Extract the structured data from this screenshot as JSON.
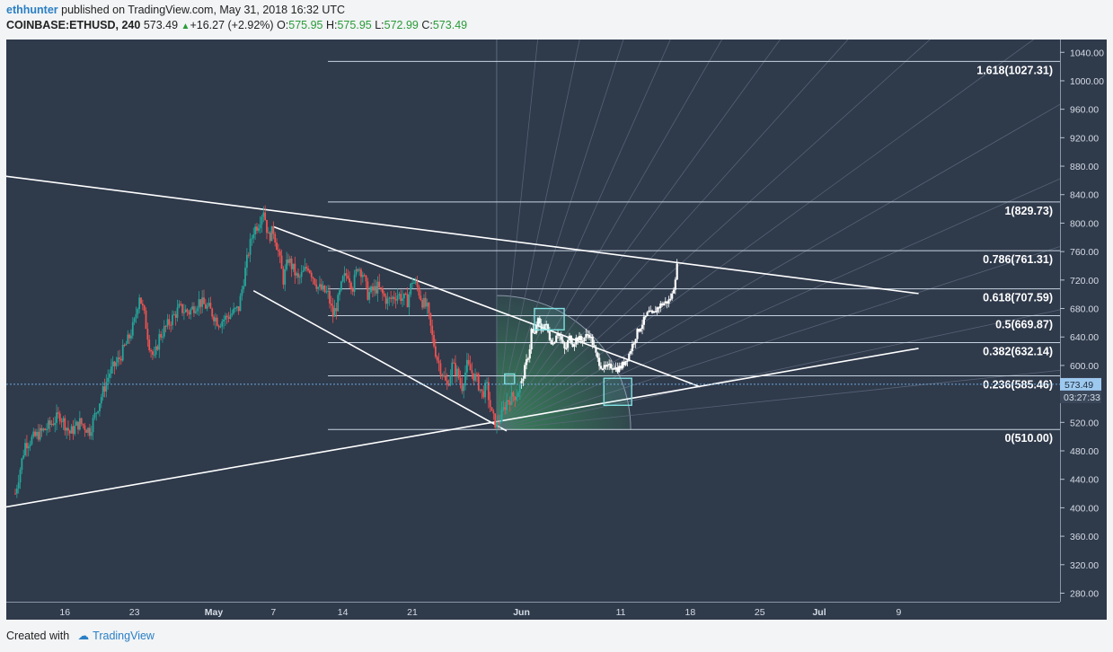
{
  "header": {
    "user": "ethhunter",
    "published_text": "published on TradingView.com, May 31, 2018 16:32 UTC",
    "symbol": "COINBASE:ETHUSD, 240",
    "last": "573.49",
    "change": "+16.27 (+2.92%)",
    "open_label": "O:",
    "open": "575.95",
    "high_label": "H:",
    "high": "575.95",
    "low_label": "L:",
    "low": "572.99",
    "close_label": "C:",
    "close": "573.49"
  },
  "footer": {
    "created_with": "Created with",
    "brand": "TradingView"
  },
  "colors": {
    "background": "#2f3a4b",
    "up": "#26a69a",
    "down": "#ef5350",
    "projection": "#ffffff",
    "fib_line": "#c8d3e0",
    "price_tag": "#9ec9ef",
    "fan_fill": "#3fae63",
    "box": "#7fe0e0"
  },
  "chart_data": {
    "type": "candlestick",
    "y_ticks": [
      "1040.00",
      "1000.00",
      "960.00",
      "920.00",
      "880.00",
      "840.00",
      "800.00",
      "760.00",
      "720.00",
      "680.00",
      "640.00",
      "600.00",
      "560.00",
      "520.00",
      "480.00",
      "440.00",
      "400.00",
      "360.00",
      "320.00",
      "280.00"
    ],
    "ylim": [
      268,
      1058
    ],
    "x_ticks": [
      {
        "label": "16",
        "day": 16
      },
      {
        "label": "23",
        "day": 23
      },
      {
        "label": "May",
        "day": 31
      },
      {
        "label": "7",
        "day": 37
      },
      {
        "label": "14",
        "day": 44
      },
      {
        "label": "21",
        "day": 51
      },
      {
        "label": "Jun",
        "day": 62
      },
      {
        "label": "11",
        "day": 72
      },
      {
        "label": "18",
        "day": 79
      },
      {
        "label": "25",
        "day": 86
      },
      {
        "label": "Jul",
        "day": 92
      },
      {
        "label": "9",
        "day": 100
      }
    ],
    "x_note": "day index counted from Apr 1, 2018",
    "price_path": [
      [
        11.0,
        420
      ],
      [
        12.0,
        490
      ],
      [
        13.0,
        500
      ],
      [
        14.0,
        510
      ],
      [
        15.5,
        530
      ],
      [
        16.5,
        505
      ],
      [
        17.5,
        520
      ],
      [
        18.5,
        508
      ],
      [
        19.5,
        550
      ],
      [
        20.5,
        590
      ],
      [
        21.5,
        610
      ],
      [
        22.5,
        640
      ],
      [
        23.0,
        660
      ],
      [
        23.5,
        700
      ],
      [
        24.0,
        670
      ],
      [
        24.5,
        630
      ],
      [
        25.0,
        608
      ],
      [
        25.5,
        640
      ],
      [
        26.5,
        660
      ],
      [
        27.5,
        680
      ],
      [
        28.5,
        675
      ],
      [
        29.5,
        690
      ],
      [
        30.5,
        680
      ],
      [
        31.5,
        660
      ],
      [
        32.5,
        670
      ],
      [
        33.5,
        680
      ],
      [
        34.0,
        720
      ],
      [
        34.5,
        760
      ],
      [
        35.0,
        790
      ],
      [
        35.5,
        800
      ],
      [
        36.0,
        820
      ],
      [
        36.5,
        780
      ],
      [
        37.0,
        790
      ],
      [
        37.5,
        760
      ],
      [
        38.0,
        720
      ],
      [
        38.5,
        750
      ],
      [
        39.5,
        720
      ],
      [
        40.5,
        740
      ],
      [
        41.5,
        710
      ],
      [
        42.5,
        700
      ],
      [
        43.0,
        670
      ],
      [
        43.5,
        690
      ],
      [
        44.0,
        720
      ],
      [
        44.5,
        730
      ],
      [
        45.0,
        710
      ],
      [
        45.5,
        740
      ],
      [
        46.0,
        730
      ],
      [
        46.5,
        700
      ],
      [
        47.5,
        710
      ],
      [
        48.5,
        690
      ],
      [
        49.5,
        700
      ],
      [
        50.5,
        690
      ],
      [
        51.0,
        720
      ],
      [
        51.5,
        710
      ],
      [
        52.0,
        690
      ],
      [
        52.5,
        680
      ],
      [
        53.0,
        640
      ],
      [
        53.5,
        610
      ],
      [
        54.0,
        590
      ],
      [
        54.5,
        570
      ],
      [
        55.0,
        600
      ],
      [
        55.5,
        590
      ],
      [
        56.0,
        570
      ],
      [
        56.5,
        600
      ],
      [
        57.0,
        590
      ],
      [
        57.5,
        580
      ],
      [
        58.0,
        560
      ],
      [
        58.5,
        570
      ],
      [
        59.0,
        530
      ],
      [
        59.5,
        515
      ],
      [
        60.0,
        530
      ],
      [
        60.5,
        550
      ],
      [
        61.0,
        555
      ],
      [
        61.5,
        560
      ],
      [
        62.0,
        575
      ]
    ],
    "projection_path": [
      [
        62.0,
        575
      ],
      [
        62.4,
        600
      ],
      [
        62.8,
        620
      ],
      [
        63.0,
        650
      ],
      [
        63.3,
        640
      ],
      [
        63.6,
        665
      ],
      [
        64.0,
        650
      ],
      [
        64.4,
        660
      ],
      [
        64.8,
        640
      ],
      [
        65.2,
        630
      ],
      [
        65.6,
        650
      ],
      [
        66.0,
        635
      ],
      [
        66.4,
        620
      ],
      [
        66.8,
        640
      ],
      [
        67.2,
        630
      ],
      [
        67.6,
        640
      ],
      [
        68.0,
        635
      ],
      [
        68.4,
        640
      ],
      [
        68.8,
        645
      ],
      [
        69.2,
        630
      ],
      [
        69.6,
        610
      ],
      [
        70.0,
        600
      ],
      [
        70.4,
        595
      ],
      [
        70.8,
        598
      ],
      [
        71.2,
        600
      ],
      [
        71.6,
        595
      ],
      [
        72.0,
        598
      ],
      [
        72.4,
        605
      ],
      [
        72.8,
        615
      ],
      [
        73.2,
        630
      ],
      [
        73.6,
        645
      ],
      [
        74.0,
        655
      ],
      [
        74.4,
        665
      ],
      [
        74.8,
        675
      ],
      [
        75.2,
        670
      ],
      [
        75.6,
        680
      ],
      [
        76.0,
        685
      ],
      [
        76.4,
        688
      ],
      [
        76.8,
        690
      ],
      [
        77.2,
        700
      ],
      [
        77.4,
        715
      ],
      [
        77.6,
        735
      ],
      [
        77.8,
        748
      ]
    ],
    "fib_levels": [
      {
        "ratio": "1.618",
        "price": 1027.31,
        "label": "1.618(1027.31)"
      },
      {
        "ratio": "1",
        "price": 829.73,
        "label": "1(829.73)"
      },
      {
        "ratio": "0.786",
        "price": 761.31,
        "label": "0.786(761.31)"
      },
      {
        "ratio": "0.618",
        "price": 707.59,
        "label": "0.618(707.59)"
      },
      {
        "ratio": "0.5",
        "price": 669.87,
        "label": "0.5(669.87)"
      },
      {
        "ratio": "0.382",
        "price": 632.14,
        "label": "0.382(632.14)"
      },
      {
        "ratio": "0.236",
        "price": 585.46,
        "label": "0.236(585.46)"
      },
      {
        "ratio": "0",
        "price": 510.0,
        "label": "0(510.00)"
      }
    ],
    "fib_x_start_day": 42.5,
    "trendlines": [
      {
        "name": "upper-resistance",
        "from": [
          0.5,
          883
        ],
        "to": [
          102,
          701
        ]
      },
      {
        "name": "lower-support",
        "from": [
          0.5,
          378
        ],
        "to": [
          102,
          624
        ]
      },
      {
        "name": "wedge-upper",
        "from": [
          37.0,
          795
        ],
        "to": [
          80.0,
          570
        ]
      },
      {
        "name": "wedge-lower",
        "from": [
          35.0,
          705
        ],
        "to": [
          60.5,
          508
        ]
      }
    ],
    "gann_fan": {
      "origin_day": 59.5,
      "origin_price": 510,
      "radius_day": 13.5
    },
    "boxes": [
      {
        "name": "box-small",
        "d1": 60.3,
        "d2": 61.3,
        "p1": 574,
        "p2": 588
      },
      {
        "name": "box-upper",
        "d1": 63.3,
        "d2": 66.3,
        "p1": 650,
        "p2": 680
      },
      {
        "name": "box-lower",
        "d1": 70.3,
        "d2": 73.1,
        "p1": 544,
        "p2": 582
      }
    ],
    "current_price": "573.49",
    "countdown": "03:27:33",
    "current_price_value": 573.49
  }
}
